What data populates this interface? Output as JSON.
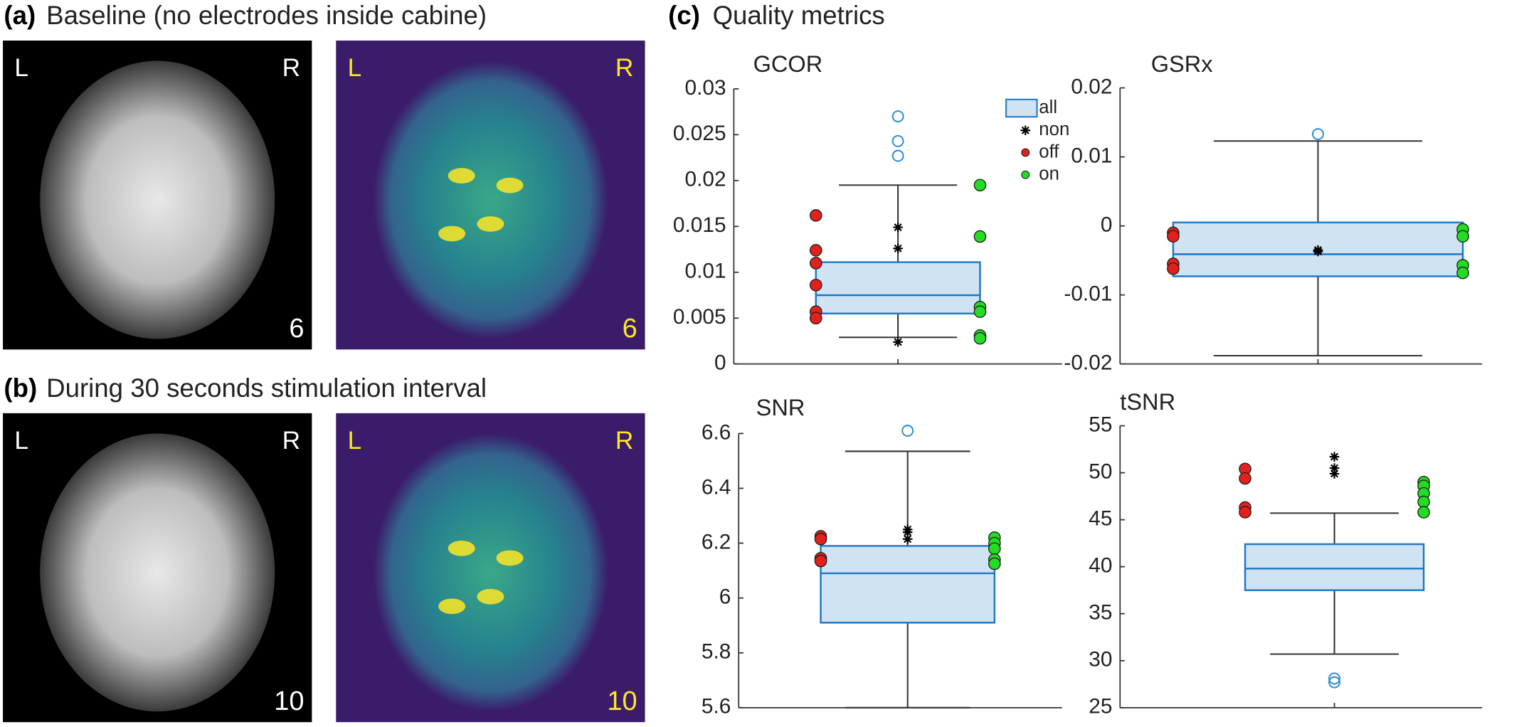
{
  "panels": [
    {
      "label": "(a)",
      "title": "Baseline (no electrodes inside cabine)",
      "images": [
        {
          "left": "L",
          "right": "R",
          "slice": "6"
        },
        {
          "left": "L",
          "right": "R",
          "slice": "6"
        }
      ]
    },
    {
      "label": "(b)",
      "title": "During 30 seconds stimulation interval",
      "images": [
        {
          "left": "L",
          "right": "R",
          "slice": "10"
        },
        {
          "left": "L",
          "right": "R",
          "slice": "10"
        }
      ]
    },
    {
      "label": "(c)",
      "title": "Quality metrics"
    }
  ],
  "chart_data": [
    {
      "type": "box",
      "title": "GCOR",
      "ylim": [
        0,
        0.03
      ],
      "yticks": [
        0,
        0.005,
        0.01,
        0.015,
        0.02,
        0.025,
        0.03
      ],
      "legend": true,
      "box": {
        "name": "all",
        "color": "#1f77c4",
        "fill": "#cfe3f3",
        "whisker_low": 0.0029,
        "q1": 0.0055,
        "median": 0.0075,
        "q3": 0.0111,
        "whisker_high": 0.0195,
        "outliers": [
          0.027,
          0.0243,
          0.0227
        ]
      },
      "series": [
        {
          "name": "non",
          "color": "#000000",
          "values": [
            0.0149,
            0.0126,
            0.0024
          ]
        },
        {
          "name": "off",
          "color": "#e3201b",
          "values": [
            0.0162,
            0.0124,
            0.011,
            0.0086,
            0.0057,
            0.005
          ]
        },
        {
          "name": "on",
          "color": "#22dd22",
          "values": [
            0.0195,
            0.0139,
            0.0062,
            0.0057,
            0.0031,
            0.0028
          ]
        }
      ]
    },
    {
      "type": "box",
      "title": "GSRx",
      "ylim": [
        -0.02,
        0.02
      ],
      "yticks": [
        -0.02,
        -0.01,
        0,
        0.01,
        0.02
      ],
      "box": {
        "color": "#1f77c4",
        "fill": "#cfe3f3",
        "whisker_low": -0.0188,
        "q1": -0.0073,
        "median": -0.0041,
        "q3": 0.0005,
        "whisker_high": 0.0123,
        "outliers": [
          0.0133
        ]
      },
      "series": [
        {
          "color": "#000000",
          "values": [
            -0.0037,
            -0.0035
          ]
        },
        {
          "color": "#e3201b",
          "values": [
            -0.001,
            -0.0015,
            -0.0055,
            -0.0062
          ]
        },
        {
          "color": "#22dd22",
          "values": [
            -0.0005,
            -0.0015,
            -0.0057,
            -0.0068
          ]
        }
      ]
    },
    {
      "type": "box",
      "title": "SNR",
      "ylim": [
        5.6,
        6.6
      ],
      "yticks": [
        5.6,
        5.8,
        6,
        6.2,
        6.4,
        6.6
      ],
      "box": {
        "color": "#1f77c4",
        "fill": "#cfe3f3",
        "whisker_low": 5.6,
        "q1": 5.91,
        "median": 6.09,
        "q3": 6.19,
        "whisker_high": 6.535,
        "outliers": [
          6.61
        ]
      },
      "series": [
        {
          "color": "#000000",
          "values": [
            6.25,
            6.24,
            6.215
          ]
        },
        {
          "color": "#e3201b",
          "values": [
            6.225,
            6.215,
            6.145,
            6.135
          ]
        },
        {
          "color": "#22dd22",
          "values": [
            6.22,
            6.2,
            6.18,
            6.14,
            6.125
          ]
        }
      ]
    },
    {
      "type": "box",
      "title": "tSNR",
      "ylim": [
        25,
        55
      ],
      "yticks": [
        25,
        30,
        35,
        40,
        45,
        50,
        55
      ],
      "box": {
        "color": "#1f77c4",
        "fill": "#cfe3f3",
        "whisker_low": 30.7,
        "q1": 37.5,
        "median": 39.8,
        "q3": 42.4,
        "whisker_high": 45.7,
        "outliers": [
          28.1,
          27.7
        ]
      },
      "series": [
        {
          "color": "#000000",
          "values": [
            51.7,
            50.5,
            49.9
          ]
        },
        {
          "color": "#e3201b",
          "values": [
            50.4,
            49.4,
            46.3,
            45.8
          ]
        },
        {
          "color": "#22dd22",
          "values": [
            49.0,
            48.6,
            47.8,
            46.9,
            45.8
          ]
        }
      ]
    }
  ]
}
